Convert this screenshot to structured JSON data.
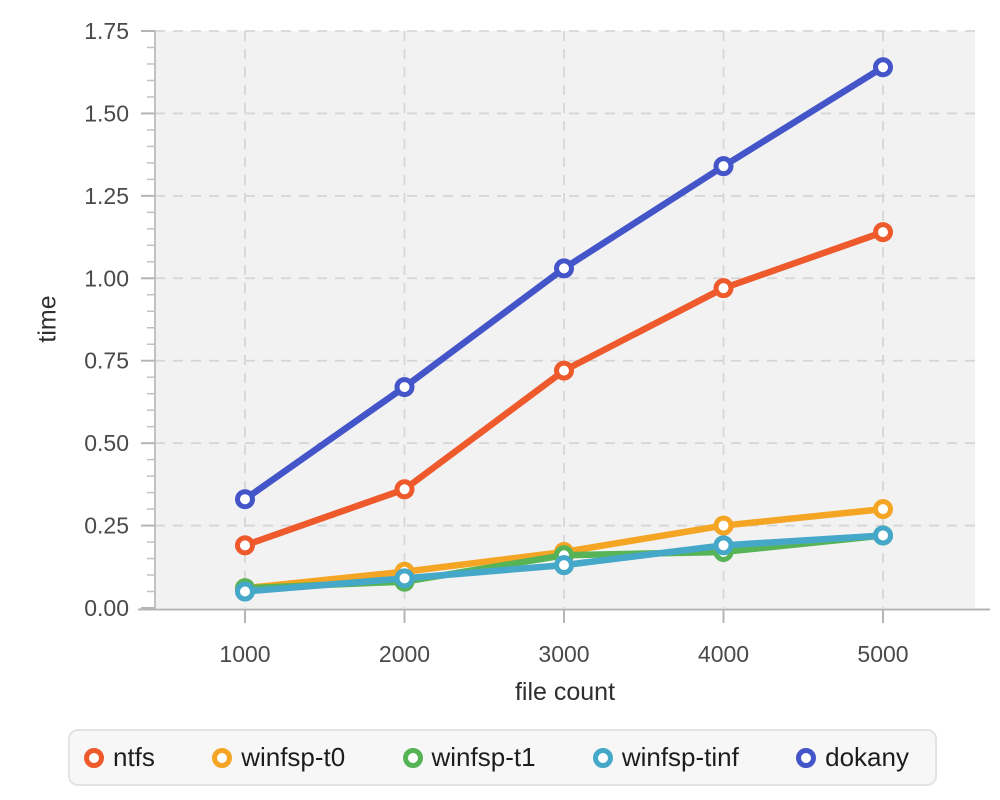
{
  "chart_data": {
    "type": "line",
    "title": "",
    "xlabel": "file count",
    "ylabel": "time",
    "x": [
      1000,
      2000,
      3000,
      4000,
      5000
    ],
    "x_tick_labels": [
      "1000",
      "2000",
      "3000",
      "4000",
      "5000"
    ],
    "y_tick_labels": [
      "0.00",
      "0.25",
      "0.50",
      "0.75",
      "1.00",
      "1.25",
      "1.50",
      "1.75"
    ],
    "ylim": [
      0,
      1.75
    ],
    "y_major_step": 0.25,
    "y_minor_step": 0.05,
    "grid": "dashed",
    "legend_position": "bottom",
    "series": [
      {
        "name": "ntfs",
        "color": "#ee5a2c",
        "values": [
          0.19,
          0.36,
          0.72,
          0.97,
          1.14
        ]
      },
      {
        "name": "winfsp-t0",
        "color": "#f5a524",
        "values": [
          0.06,
          0.11,
          0.17,
          0.25,
          0.3
        ]
      },
      {
        "name": "winfsp-t1",
        "color": "#56b356",
        "values": [
          0.06,
          0.08,
          0.16,
          0.17,
          0.22
        ]
      },
      {
        "name": "winfsp-tinf",
        "color": "#46a8c8",
        "values": [
          0.05,
          0.09,
          0.13,
          0.19,
          0.22
        ]
      },
      {
        "name": "dokany",
        "color": "#4455c9",
        "values": [
          0.33,
          0.67,
          1.03,
          1.34,
          1.64
        ]
      }
    ],
    "style": {
      "plot_bg": "#f2f2f3",
      "grid_color": "#d6d6d6",
      "spine_color": "#c2c2c2",
      "tick_color": "#b5b5b5",
      "tick_label_color": "#4a4a4c",
      "axis_title_color": "#2e2e30",
      "legend_bg": "#f7f7f7",
      "legend_border": "#e3e3e3"
    }
  }
}
